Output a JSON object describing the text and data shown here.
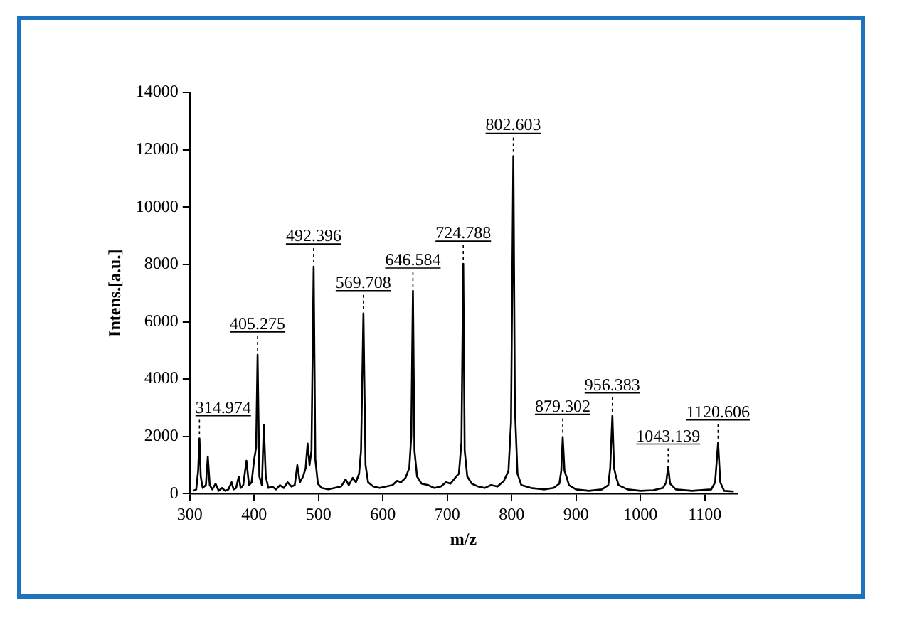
{
  "chart_data": {
    "type": "line",
    "xlabel": "m/z",
    "ylabel": "Intens.[a.u.]",
    "xlim": [
      300,
      1150
    ],
    "xticks": [
      300,
      400,
      500,
      600,
      700,
      800,
      900,
      1000,
      1100
    ],
    "ylim": [
      0,
      14000
    ],
    "yticks": [
      0,
      2000,
      4000,
      6000,
      8000,
      10000,
      12000,
      14000
    ],
    "grid": false,
    "legend": false,
    "marker": "none",
    "line_style": "solid",
    "series": [
      {
        "color": "#000000",
        "x": [
          305,
          310,
          313,
          315,
          317,
          320,
          325,
          328,
          331,
          335,
          340,
          345,
          350,
          355,
          360,
          365,
          368,
          372,
          376,
          379,
          383,
          388,
          392,
          396,
          400,
          403,
          405.3,
          408,
          412,
          415,
          418,
          422,
          428,
          434,
          440,
          446,
          452,
          458,
          463,
          467,
          471,
          476,
          480,
          483,
          486,
          489,
          492.4,
          495,
          499,
          505,
          515,
          525,
          535,
          542,
          547,
          553,
          558,
          563,
          566,
          569.7,
          573,
          577,
          585,
          595,
          605,
          615,
          622,
          628,
          635,
          641,
          644,
          646.6,
          649,
          653,
          660,
          670,
          680,
          690,
          698,
          705,
          712,
          718,
          722,
          724.8,
          727,
          731,
          738,
          748,
          758,
          768,
          778,
          788,
          795,
          799,
          802.6,
          805,
          809,
          815,
          830,
          850,
          865,
          874,
          877,
          879.3,
          882,
          885,
          889,
          900,
          920,
          940,
          950,
          953,
          956.4,
          959,
          962,
          966,
          980,
          1000,
          1020,
          1035,
          1040,
          1043.1,
          1046,
          1055,
          1080,
          1110,
          1116,
          1120.6,
          1124,
          1130,
          1145
        ],
        "values": [
          100,
          150,
          800,
          1930,
          600,
          200,
          300,
          1300,
          300,
          150,
          350,
          100,
          200,
          100,
          150,
          400,
          150,
          200,
          600,
          200,
          300,
          1150,
          300,
          400,
          1200,
          1600,
          4850,
          600,
          300,
          2400,
          600,
          200,
          250,
          150,
          300,
          200,
          400,
          250,
          300,
          1000,
          400,
          600,
          900,
          1750,
          1000,
          1500,
          7920,
          1200,
          350,
          200,
          150,
          200,
          250,
          500,
          300,
          550,
          400,
          700,
          1500,
          6290,
          1000,
          400,
          250,
          200,
          250,
          300,
          450,
          400,
          550,
          900,
          2000,
          7080,
          1500,
          600,
          350,
          300,
          200,
          250,
          400,
          350,
          550,
          700,
          1800,
          8020,
          1500,
          600,
          350,
          250,
          200,
          300,
          250,
          450,
          800,
          2500,
          11780,
          3000,
          700,
          300,
          200,
          150,
          200,
          350,
          800,
          1980,
          800,
          600,
          300,
          150,
          100,
          150,
          300,
          900,
          2720,
          900,
          600,
          300,
          150,
          100,
          120,
          200,
          400,
          940,
          350,
          150,
          100,
          150,
          400,
          1780,
          400,
          100,
          80
        ]
      }
    ],
    "annotations": [
      {
        "text": "314.974",
        "x": 315,
        "y": 1930
      },
      {
        "text": "405.275",
        "x": 405.3,
        "y": 4850
      },
      {
        "text": "492.396",
        "x": 492.4,
        "y": 7920
      },
      {
        "text": "569.708",
        "x": 569.7,
        "y": 6290
      },
      {
        "text": "646.584",
        "x": 646.6,
        "y": 7080
      },
      {
        "text": "724.788",
        "x": 724.8,
        "y": 8020
      },
      {
        "text": "802.603",
        "x": 802.6,
        "y": 11780
      },
      {
        "text": "879.302",
        "x": 879.3,
        "y": 1980
      },
      {
        "text": "956.383",
        "x": 956.4,
        "y": 2720
      },
      {
        "text": "1043.139",
        "x": 1043.1,
        "y": 940
      },
      {
        "text": "1120.606",
        "x": 1120.6,
        "y": 1780
      }
    ]
  }
}
